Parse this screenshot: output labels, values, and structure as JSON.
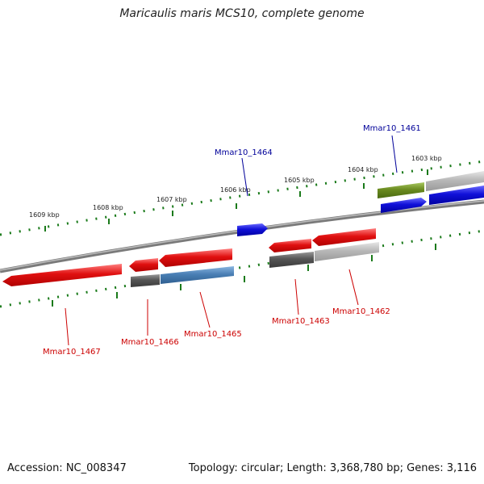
{
  "title": "Maricaulis maris MCS10, complete genome",
  "footer": {
    "accession": "Accession: NC_008347",
    "summary": "Topology: circular; Length: 3,368,780 bp; Genes: 3,116"
  },
  "scale_labels": [
    "1609 kbp",
    "1608 kbp",
    "1607 kbp",
    "1606 kbp",
    "1605 kbp",
    "1604 kbp",
    "1603 kbp"
  ],
  "gene_labels": [
    "Mmar10_1461",
    "Mmar10_1462",
    "Mmar10_1463",
    "Mmar10_1464",
    "Mmar10_1465",
    "Mmar10_1466",
    "Mmar10_1467"
  ],
  "colors": {
    "red": "#e01010",
    "blue": "#1010d8",
    "dark_gray": "#555555",
    "light_gray": "#b8b8b8",
    "steel_blue": "#4a7fb5",
    "olive": "#6a8a20",
    "tick_green": "#1a7a1a",
    "label_red": "#cc0000",
    "label_blue": "#000099"
  }
}
